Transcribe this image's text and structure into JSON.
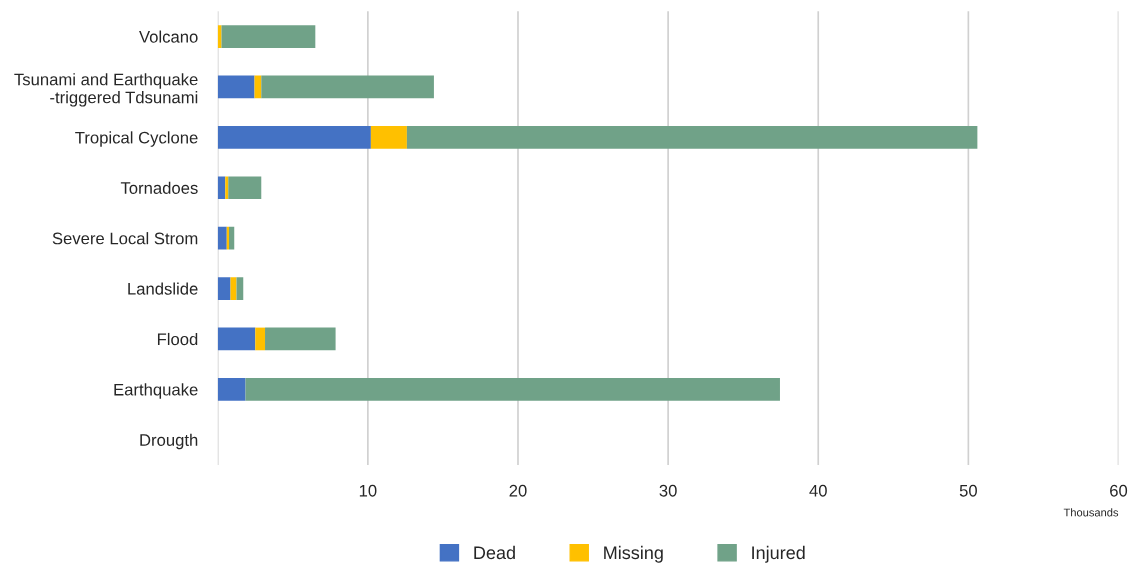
{
  "chart_data": {
    "type": "bar",
    "orientation": "horizontal",
    "stacked": true,
    "categories": [
      "Volcano",
      "Tsunami and Earthquake\n-triggered Tdsunami",
      "Tropical Cyclone",
      "Tornadoes",
      "Severe Local Strom",
      "Landslide",
      "Flood",
      "Earthquake",
      "Drougth"
    ],
    "series": [
      {
        "name": "Dead",
        "color": "#4472c4",
        "values": [
          0,
          2.45,
          10.2,
          0.5,
          0.6,
          0.85,
          2.5,
          1.85,
          0
        ]
      },
      {
        "name": "Missing",
        "color": "#ffc000",
        "values": [
          0.25,
          0.45,
          2.4,
          0.2,
          0.15,
          0.4,
          0.65,
          0,
          0
        ]
      },
      {
        "name": "Injured",
        "color": "#70a288",
        "values": [
          6.25,
          11.5,
          38.0,
          2.2,
          0.35,
          0.45,
          4.7,
          35.6,
          0
        ]
      }
    ],
    "xlim": [
      0,
      60
    ],
    "xticks": [
      {
        "value": 0,
        "label": null
      },
      10,
      20,
      30,
      40,
      50,
      60
    ],
    "xlabel": "Thousands",
    "grid": "x",
    "legend": "bottom"
  }
}
